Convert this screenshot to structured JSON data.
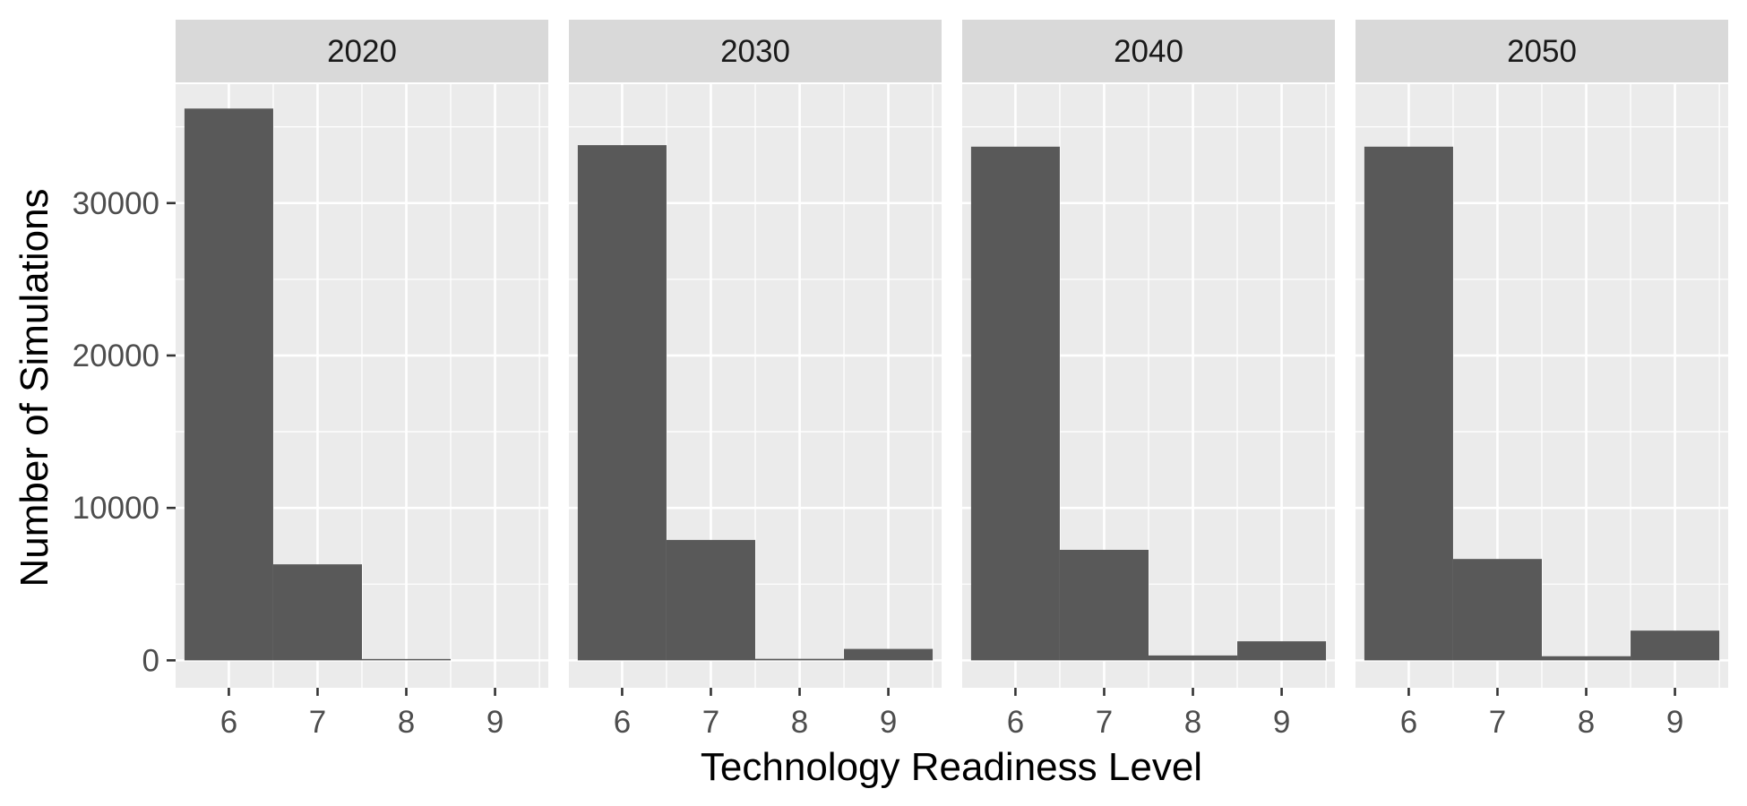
{
  "chart_data": {
    "type": "bar",
    "title": "",
    "xlabel": "Technology Readiness Level",
    "ylabel": "Number of Simulations",
    "categories": [
      "6",
      "7",
      "8",
      "9"
    ],
    "ylim": [
      -1800,
      37800
    ],
    "y_ticks": [
      0,
      10000,
      20000,
      30000
    ],
    "y_tick_labels": [
      "0",
      "10000",
      "20000",
      "30000"
    ],
    "grid": true,
    "bar_color": "#595959",
    "panel_color": "#EBEBEB",
    "strip_color": "#D9D9D9",
    "panels": [
      {
        "label": "2020",
        "values": [
          36200,
          6300,
          80,
          0
        ]
      },
      {
        "label": "2030",
        "values": [
          33800,
          7900,
          100,
          750
        ]
      },
      {
        "label": "2040",
        "values": [
          33700,
          7250,
          320,
          1250
        ]
      },
      {
        "label": "2050",
        "values": [
          33700,
          6650,
          270,
          1950
        ]
      }
    ]
  }
}
